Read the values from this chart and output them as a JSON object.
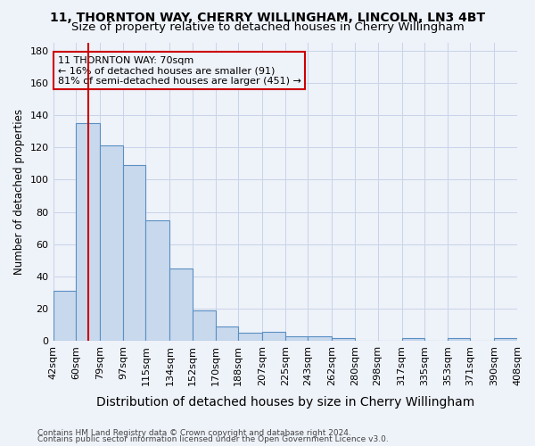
{
  "title": "11, THORNTON WAY, CHERRY WILLINGHAM, LINCOLN, LN3 4BT",
  "subtitle": "Size of property relative to detached houses in Cherry Willingham",
  "xlabel": "Distribution of detached houses by size in Cherry Willingham",
  "ylabel": "Number of detached properties",
  "bar_edges": [
    42,
    60,
    79,
    97,
    115,
    134,
    152,
    170,
    188,
    207,
    225,
    243,
    262,
    280,
    298,
    317,
    335,
    353,
    371,
    390,
    408
  ],
  "bar_heights": [
    31,
    135,
    121,
    109,
    75,
    45,
    19,
    9,
    5,
    6,
    3,
    3,
    2,
    0,
    0,
    2,
    0,
    2,
    0,
    2
  ],
  "bar_color": "#c9d9ed",
  "bar_edgecolor": "#5a8fc3",
  "grid_color": "#c8d4e8",
  "vline_x": 70,
  "vline_color": "#cc0000",
  "annotation_box_text": "11 THORNTON WAY: 70sqm\n← 16% of detached houses are smaller (91)\n81% of semi-detached houses are larger (451) →",
  "ylim": [
    0,
    185
  ],
  "yticks": [
    0,
    20,
    40,
    60,
    80,
    100,
    120,
    140,
    160,
    180
  ],
  "footnote1": "Contains HM Land Registry data © Crown copyright and database right 2024.",
  "footnote2": "Contains public sector information licensed under the Open Government Licence v3.0.",
  "title_fontsize": 10,
  "subtitle_fontsize": 9.5,
  "xlabel_fontsize": 10,
  "ylabel_fontsize": 8.5,
  "background_color": "#eef2f9"
}
